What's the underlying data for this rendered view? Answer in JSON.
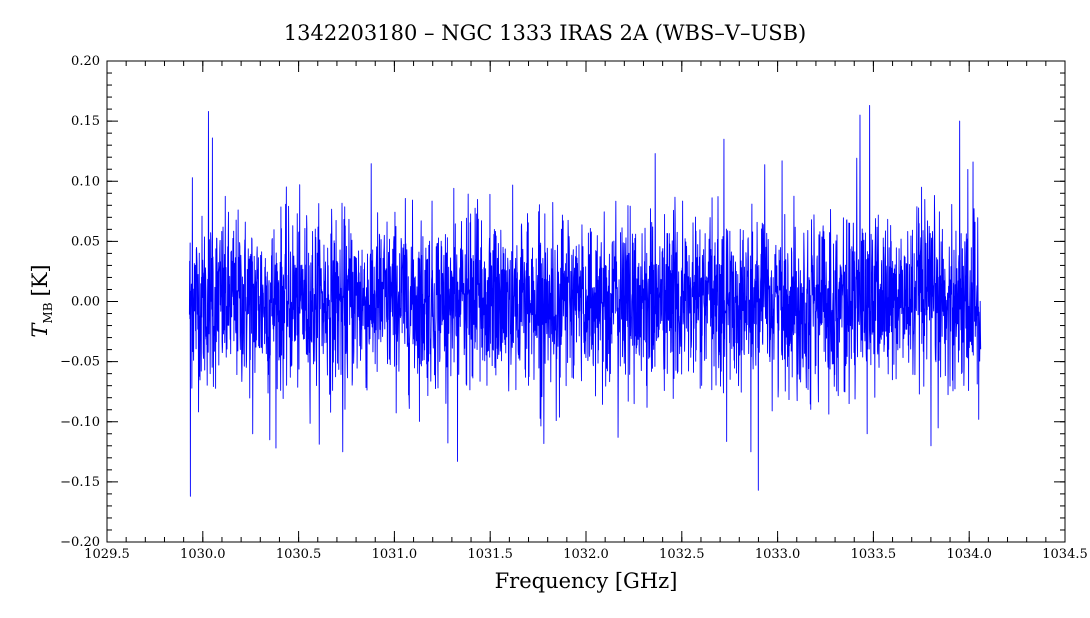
{
  "chart_data": {
    "type": "line",
    "title": "1342203180 – NGC 1333 IRAS 2A (WBS–V–USB)",
    "xlabel": "Frequency [GHz]",
    "ylabel_main": "T",
    "ylabel_sub": "MB",
    "ylabel_unit": "[K]",
    "xlim": [
      1029.5,
      1034.5
    ],
    "ylim": [
      -0.2,
      0.2
    ],
    "x_ticks": [
      1029.5,
      1030.0,
      1030.5,
      1031.0,
      1031.5,
      1032.0,
      1032.5,
      1033.0,
      1033.5,
      1034.0,
      1034.5
    ],
    "x_tick_labels": [
      "1029.5",
      "1030.0",
      "1030.5",
      "1031.0",
      "1031.5",
      "1032.0",
      "1032.5",
      "1033.0",
      "1033.5",
      "1034.0",
      "1034.5"
    ],
    "y_ticks": [
      -0.2,
      -0.15,
      -0.1,
      -0.05,
      0.0,
      0.05,
      0.1,
      0.15,
      0.2
    ],
    "y_tick_labels": [
      "−0.20",
      "−0.15",
      "−0.10",
      "−0.05",
      "0.00",
      "0.05",
      "0.10",
      "0.15",
      "0.20"
    ],
    "grid": false,
    "series": [
      {
        "color": "#0000ff",
        "x_start": 1029.93,
        "x_end": 1034.06,
        "noise_rms": 0.035,
        "peaks": [
          {
            "x": 1029.935,
            "y": -0.162
          },
          {
            "x": 1029.945,
            "y": 0.103
          },
          {
            "x": 1030.03,
            "y": 0.158
          },
          {
            "x": 1030.05,
            "y": 0.136
          },
          {
            "x": 1030.26,
            "y": -0.11
          },
          {
            "x": 1030.35,
            "y": -0.115
          },
          {
            "x": 1030.73,
            "y": -0.125
          },
          {
            "x": 1031.33,
            "y": -0.133
          },
          {
            "x": 1032.72,
            "y": 0.135
          },
          {
            "x": 1032.86,
            "y": -0.125
          },
          {
            "x": 1032.9,
            "y": -0.157
          },
          {
            "x": 1033.43,
            "y": 0.155
          },
          {
            "x": 1033.48,
            "y": 0.163
          },
          {
            "x": 1033.8,
            "y": -0.12
          },
          {
            "x": 1033.95,
            "y": 0.15
          },
          {
            "x": 1034.02,
            "y": 0.116
          },
          {
            "x": 1034.05,
            "y": -0.098
          }
        ]
      }
    ]
  }
}
